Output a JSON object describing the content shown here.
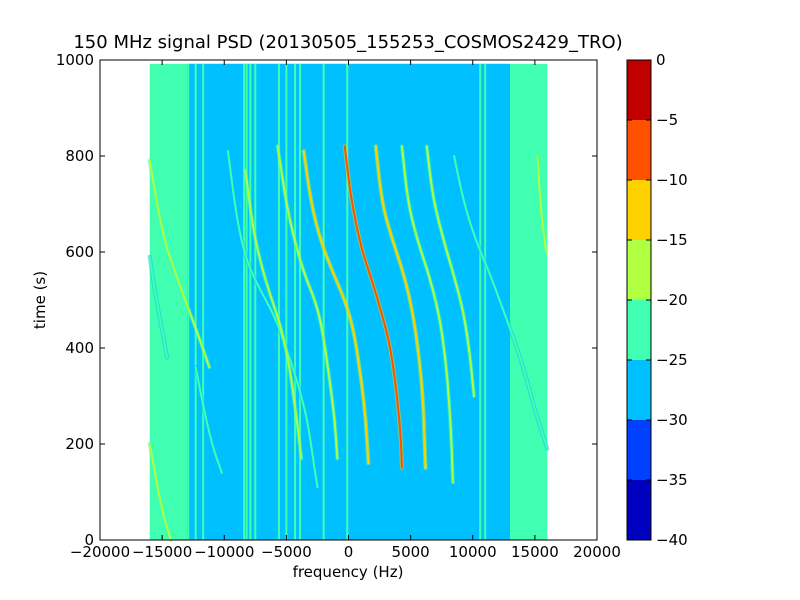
{
  "chart_data": {
    "type": "heatmap",
    "title": "150 MHz signal PSD (20130505_155253_COSMOS2429_TRO)",
    "xlabel": "frequency (Hz)",
    "ylabel": "time (s)",
    "xlim": [
      -20000,
      20000
    ],
    "ylim": [
      0,
      1000
    ],
    "xticks": [
      -20000,
      -15000,
      -10000,
      -5000,
      0,
      5000,
      10000,
      15000,
      20000
    ],
    "xtick_labels": [
      "−20000",
      "−15000",
      "−10000",
      "−5000",
      "0",
      "5000",
      "10000",
      "15000",
      "20000"
    ],
    "yticks": [
      0,
      200,
      400,
      600,
      800,
      1000
    ],
    "ytick_labels": [
      "0",
      "200",
      "400",
      "600",
      "800",
      "1000"
    ],
    "data_extent": {
      "freq": [
        -16000,
        16000
      ],
      "time": [
        0,
        992
      ]
    },
    "noise_floor_db": -27,
    "edge_band_db": -22,
    "colorbar": {
      "min": -40,
      "max": 0,
      "ticks": [
        0,
        -5,
        -10,
        -15,
        -20,
        -25,
        -30,
        -35,
        -40
      ],
      "tick_labels": [
        "0",
        "−5",
        "−10",
        "−15",
        "−20",
        "−25",
        "−30",
        "−35",
        "−40"
      ],
      "levels": [
        {
          "from": -40,
          "to": -35,
          "color": "#0000c0"
        },
        {
          "from": -35,
          "to": -30,
          "color": "#0040ff"
        },
        {
          "from": -30,
          "to": -25,
          "color": "#00c0ff"
        },
        {
          "from": -25,
          "to": -20,
          "color": "#40ffb0"
        },
        {
          "from": -20,
          "to": -15,
          "color": "#b0ff40"
        },
        {
          "from": -15,
          "to": -10,
          "color": "#ffd000"
        },
        {
          "from": -10,
          "to": -5,
          "color": "#ff5000"
        },
        {
          "from": -5,
          "to": 0,
          "color": "#c00000"
        }
      ]
    },
    "vertical_lines": [
      {
        "freq": -12900,
        "db": -22
      },
      {
        "freq": -12300,
        "db": -22
      },
      {
        "freq": -11700,
        "db": -22
      },
      {
        "freq": -8400,
        "db": -22
      },
      {
        "freq": -8200,
        "db": -20
      },
      {
        "freq": -7900,
        "db": -22
      },
      {
        "freq": -7500,
        "db": -22
      },
      {
        "freq": -5600,
        "db": -22
      },
      {
        "freq": -5000,
        "db": -22
      },
      {
        "freq": -4300,
        "db": -22
      },
      {
        "freq": -3900,
        "db": -22
      },
      {
        "freq": -2000,
        "db": -22
      },
      {
        "freq": -100,
        "db": -24
      },
      {
        "freq": 10600,
        "db": -22
      },
      {
        "freq": 11000,
        "db": -22
      }
    ],
    "series": [
      {
        "db": -18,
        "points": [
          [
            -16000,
            790
          ],
          [
            -15000,
            640
          ],
          [
            -14000,
            560
          ],
          [
            -13000,
            490
          ],
          [
            -12000,
            420
          ],
          [
            -11200,
            360
          ]
        ]
      },
      {
        "db": -20,
        "points": [
          [
            -16000,
            590
          ],
          [
            -15600,
            520
          ],
          [
            -15100,
            450
          ],
          [
            -14600,
            380
          ]
        ]
      },
      {
        "db": -18,
        "points": [
          [
            -16000,
            200
          ],
          [
            -15500,
            130
          ],
          [
            -15000,
            60
          ],
          [
            -14300,
            0
          ]
        ]
      },
      {
        "db": -20,
        "points": [
          [
            -12300,
            360
          ],
          [
            -11700,
            280
          ],
          [
            -11000,
            200
          ],
          [
            -10200,
            140
          ]
        ]
      },
      {
        "db": -20,
        "points": [
          [
            -9700,
            810
          ],
          [
            -9000,
            670
          ],
          [
            -8300,
            590
          ],
          [
            -7500,
            540
          ],
          [
            -6000,
            470
          ],
          [
            -5000,
            400
          ],
          [
            -4000,
            320
          ],
          [
            -3300,
            250
          ],
          [
            -2800,
            160
          ],
          [
            -2500,
            110
          ]
        ]
      },
      {
        "db": -18,
        "points": [
          [
            -8300,
            770
          ],
          [
            -7700,
            650
          ],
          [
            -7000,
            570
          ],
          [
            -6300,
            510
          ],
          [
            -5500,
            450
          ],
          [
            -4800,
            370
          ],
          [
            -4200,
            260
          ],
          [
            -3800,
            170
          ]
        ]
      },
      {
        "db": -15,
        "points": [
          [
            -5700,
            820
          ],
          [
            -5000,
            700
          ],
          [
            -4300,
            620
          ],
          [
            -3500,
            550
          ],
          [
            -2700,
            500
          ],
          [
            -2100,
            440
          ],
          [
            -1500,
            330
          ],
          [
            -1100,
            250
          ],
          [
            -900,
            170
          ]
        ]
      },
      {
        "db": -12,
        "points": [
          [
            -3600,
            810
          ],
          [
            -3000,
            700
          ],
          [
            -2200,
            620
          ],
          [
            -1300,
            560
          ],
          [
            -300,
            500
          ],
          [
            400,
            440
          ],
          [
            1000,
            340
          ],
          [
            1400,
            250
          ],
          [
            1600,
            160
          ]
        ]
      },
      {
        "db": -8,
        "points": [
          [
            -300,
            820
          ],
          [
            200,
            710
          ],
          [
            1000,
            610
          ],
          [
            1900,
            540
          ],
          [
            2700,
            470
          ],
          [
            3400,
            400
          ],
          [
            3900,
            300
          ],
          [
            4200,
            220
          ],
          [
            4300,
            150
          ]
        ]
      },
      {
        "db": -12,
        "points": [
          [
            2200,
            820
          ],
          [
            2700,
            700
          ],
          [
            3600,
            620
          ],
          [
            4500,
            550
          ],
          [
            5200,
            470
          ],
          [
            5700,
            380
          ],
          [
            6000,
            290
          ],
          [
            6100,
            220
          ],
          [
            6200,
            150
          ]
        ]
      },
      {
        "db": -15,
        "points": [
          [
            4300,
            820
          ],
          [
            4800,
            700
          ],
          [
            5600,
            620
          ],
          [
            6500,
            550
          ],
          [
            7300,
            470
          ],
          [
            7800,
            380
          ],
          [
            8100,
            290
          ],
          [
            8300,
            200
          ],
          [
            8400,
            120
          ]
        ]
      },
      {
        "db": -18,
        "points": [
          [
            6300,
            820
          ],
          [
            6800,
            710
          ],
          [
            7700,
            620
          ],
          [
            8500,
            550
          ],
          [
            9300,
            470
          ],
          [
            9800,
            380
          ],
          [
            10100,
            300
          ]
        ]
      },
      {
        "db": -20,
        "points": [
          [
            8500,
            800
          ],
          [
            9300,
            700
          ],
          [
            10300,
            620
          ],
          [
            11300,
            560
          ],
          [
            12300,
            490
          ],
          [
            13300,
            420
          ],
          [
            14300,
            340
          ],
          [
            15000,
            270
          ],
          [
            16000,
            190
          ]
        ]
      },
      {
        "db": -16,
        "points": [
          [
            15200,
            800
          ],
          [
            15400,
            720
          ],
          [
            15600,
            660
          ],
          [
            15900,
            600
          ]
        ]
      }
    ]
  }
}
